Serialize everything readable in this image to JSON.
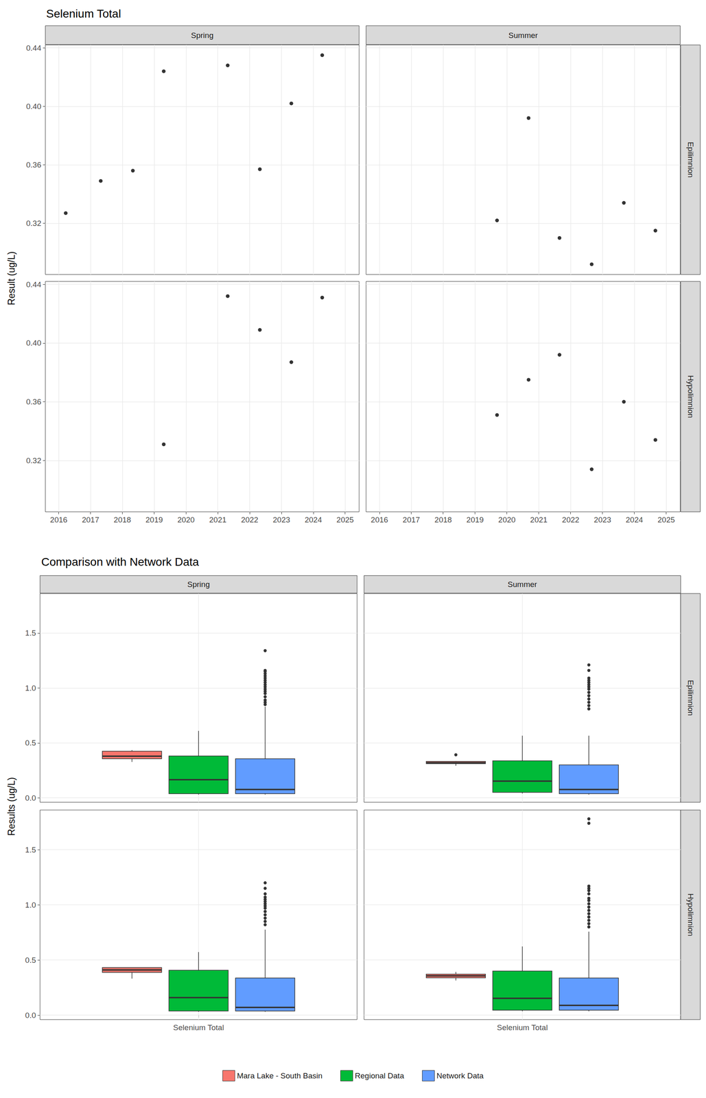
{
  "chart_data": [
    {
      "type": "scatter",
      "title": "Selenium Total",
      "y_label": "Result (ug/L)",
      "columns": [
        "Spring",
        "Summer"
      ],
      "rows": [
        "Epilimnion",
        "Hypolimnion"
      ],
      "xlim": [
        2015.58,
        2025.44
      ],
      "xticks": [
        2016,
        2017,
        2018,
        2019,
        2020,
        2021,
        2022,
        2023,
        2024,
        2025
      ],
      "ylim": [
        0.285,
        0.442
      ],
      "yticks": [
        0.32,
        0.36,
        {
          "value": 0.4,
          "label": "0.40"
        },
        0.44
      ],
      "grid": true,
      "color": "#000000",
      "marker": "circle",
      "panels": [
        {
          "column": "Spring",
          "row": "Epilimnion",
          "x": [
            2016.22,
            2017.32,
            2018.33,
            2019.3,
            2021.31,
            2022.32,
            2023.31,
            2024.28
          ],
          "values": [
            0.327,
            0.349,
            0.356,
            0.424,
            0.428,
            0.357,
            0.402,
            0.435
          ]
        },
        {
          "column": "Summer",
          "row": "Epilimnion",
          "x": [
            2019.69,
            2020.68,
            2021.65,
            2022.66,
            2023.67,
            2024.66
          ],
          "values": [
            0.322,
            0.392,
            0.31,
            0.292,
            0.334,
            0.315
          ]
        },
        {
          "column": "Spring",
          "row": "Hypolimnion",
          "x": [
            2019.3,
            2021.31,
            2022.32,
            2023.31,
            2024.28
          ],
          "values": [
            0.331,
            0.432,
            0.409,
            0.387,
            0.431
          ]
        },
        {
          "column": "Summer",
          "row": "Hypolimnion",
          "x": [
            2019.69,
            2020.68,
            2021.65,
            2022.66,
            2023.67,
            2024.66
          ],
          "values": [
            0.351,
            0.375,
            0.392,
            0.314,
            0.36,
            0.334
          ]
        }
      ]
    },
    {
      "type": "boxplot",
      "title": "Comparison with Network Data",
      "y_label": "Results (ug/L)",
      "columns": [
        "Spring",
        "Summer"
      ],
      "rows": [
        "Epilimnion",
        "Hypolimnion"
      ],
      "categories": [
        "Selenium Total"
      ],
      "ylim": [
        -0.04,
        1.86
      ],
      "yticks": [
        {
          "value": 0,
          "label": "0.0"
        },
        0.5,
        {
          "value": 1,
          "label": "1.0"
        },
        1.5
      ],
      "grid": true,
      "legend": "bottom",
      "series": [
        {
          "name": "Mara Lake - South Basin",
          "color": "#F8766D"
        },
        {
          "name": "Regional Data",
          "color": "#00BA38"
        },
        {
          "name": "Network Data",
          "color": "#619CFF"
        }
      ],
      "panels": [
        {
          "column": "Spring",
          "row": "Epilimnion",
          "boxes": [
            {
              "min": 0.327,
              "q1": 0.356,
              "median": 0.379,
              "q3": 0.425,
              "max": 0.435,
              "outliers": []
            },
            {
              "min": 0.03,
              "q1": 0.038,
              "median": 0.165,
              "q3": 0.381,
              "max": 0.61,
              "outliers": []
            },
            {
              "min": 0.03,
              "q1": 0.038,
              "median": 0.076,
              "q3": 0.356,
              "max": 0.83,
              "outliers": [
                0.85,
                0.87,
                0.89,
                0.92,
                0.95,
                0.97,
                0.99,
                1.01,
                1.03,
                1.05,
                1.07,
                1.09,
                1.11,
                1.13,
                1.15,
                1.16,
                1.34
              ]
            }
          ]
        },
        {
          "column": "Summer",
          "row": "Epilimnion",
          "boxes": [
            {
              "min": 0.292,
              "q1": 0.311,
              "median": 0.32,
              "q3": 0.332,
              "max": 0.335,
              "outliers": [
                0.392
              ]
            },
            {
              "min": 0.04,
              "q1": 0.05,
              "median": 0.152,
              "q3": 0.337,
              "max": 0.566,
              "outliers": []
            },
            {
              "min": 0.03,
              "q1": 0.038,
              "median": 0.076,
              "q3": 0.3,
              "max": 0.566,
              "outliers": [
                0.81,
                0.84,
                0.87,
                0.9,
                0.93,
                0.96,
                0.99,
                1.01,
                1.03,
                1.05,
                1.07,
                1.09,
                1.16,
                1.21
              ]
            }
          ]
        },
        {
          "column": "Spring",
          "row": "Hypolimnion",
          "boxes": [
            {
              "min": 0.331,
              "q1": 0.388,
              "median": 0.41,
              "q3": 0.431,
              "max": 0.432,
              "outliers": []
            },
            {
              "min": 0.03,
              "q1": 0.038,
              "median": 0.159,
              "q3": 0.407,
              "max": 0.572,
              "outliers": []
            },
            {
              "min": 0.03,
              "q1": 0.038,
              "median": 0.07,
              "q3": 0.337,
              "max": 0.776,
              "outliers": [
                0.82,
                0.85,
                0.88,
                0.91,
                0.94,
                0.97,
                0.99,
                1.01,
                1.03,
                1.05,
                1.07,
                1.1,
                1.15,
                1.2
              ]
            }
          ]
        },
        {
          "column": "Summer",
          "row": "Hypolimnion",
          "boxes": [
            {
              "min": 0.315,
              "q1": 0.339,
              "median": 0.356,
              "q3": 0.372,
              "max": 0.392,
              "outliers": []
            },
            {
              "min": 0.035,
              "q1": 0.045,
              "median": 0.153,
              "q3": 0.4,
              "max": 0.623,
              "outliers": []
            },
            {
              "min": 0.035,
              "q1": 0.045,
              "median": 0.089,
              "q3": 0.337,
              "max": 0.757,
              "outliers": [
                0.8,
                0.83,
                0.86,
                0.89,
                0.92,
                0.95,
                0.98,
                1.01,
                1.04,
                1.06,
                1.1,
                1.13,
                1.15,
                1.17,
                1.74,
                1.78
              ]
            }
          ]
        }
      ]
    }
  ]
}
